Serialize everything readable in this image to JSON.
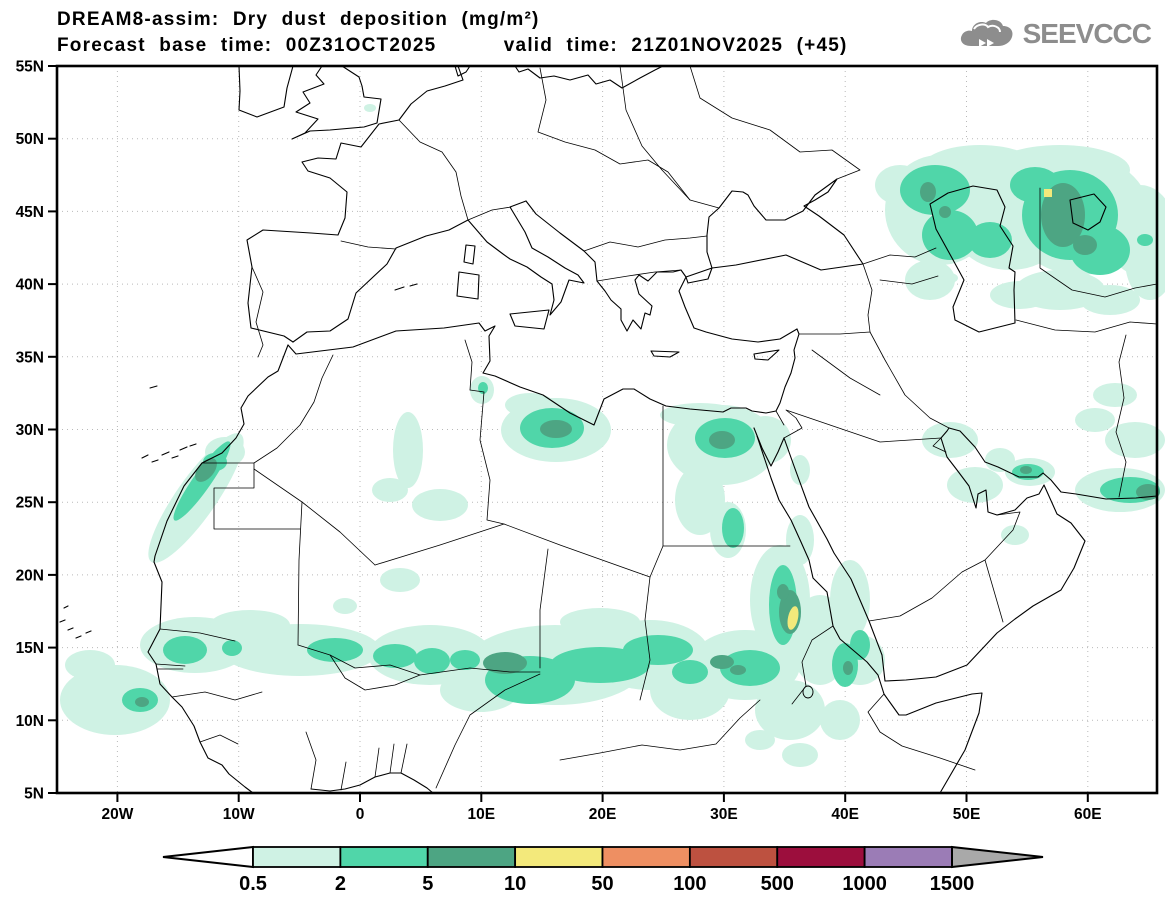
{
  "header": {
    "title_line1": "DREAM8-assim: Dry dust deposition (mg/m²)",
    "title_line2": "Forecast base time: 00Z31OCT2025     valid time: 21Z01NOV2025 (+45)"
  },
  "logo": {
    "text": "SEEVCCC",
    "color": "#8d8d8d"
  },
  "map": {
    "lat_ticks": [
      {
        "label": "55N",
        "value": 55
      },
      {
        "label": "50N",
        "value": 50
      },
      {
        "label": "45N",
        "value": 45
      },
      {
        "label": "40N",
        "value": 40
      },
      {
        "label": "35N",
        "value": 35
      },
      {
        "label": "30N",
        "value": 30
      },
      {
        "label": "25N",
        "value": 25
      },
      {
        "label": "20N",
        "value": 20
      },
      {
        "label": "15N",
        "value": 15
      },
      {
        "label": "10N",
        "value": 10
      },
      {
        "label": "5N",
        "value": 5
      }
    ],
    "lon_ticks": [
      {
        "label": "20W",
        "value": -20
      },
      {
        "label": "10W",
        "value": -10
      },
      {
        "label": "0",
        "value": 0
      },
      {
        "label": "10E",
        "value": 10
      },
      {
        "label": "20E",
        "value": 20
      },
      {
        "label": "30E",
        "value": 30
      },
      {
        "label": "40E",
        "value": 40
      },
      {
        "label": "50E",
        "value": 50
      },
      {
        "label": "60E",
        "value": 60
      }
    ],
    "grid_lats": [
      10,
      15,
      20,
      25,
      30,
      35,
      40,
      45,
      50
    ]
  },
  "colorbar": {
    "labels": [
      "0.5",
      "2",
      "5",
      "10",
      "50",
      "100",
      "500",
      "1000",
      "1500"
    ],
    "colors": [
      "#cff2e4",
      "#50d6a9",
      "#4da583",
      "#f3e97b",
      "#ee8f62",
      "#bd5140",
      "#9c0e3d",
      "#9b7cb6"
    ],
    "under_color": "#ffffff",
    "over_color": "#a9a9a9"
  },
  "chart_data": {
    "type": "heatmap",
    "title": "DREAM8-assim: Dry dust deposition (mg/m²)",
    "units": "mg/m²",
    "forecast_base_time": "00Z31OCT2025",
    "valid_time": "21Z01NOV2025 (+45)",
    "forecast_hour": 45,
    "lon_range": [
      -25,
      66
    ],
    "lat_range": [
      5,
      55
    ],
    "contour_levels": [
      0.5,
      2,
      5,
      10,
      50,
      100,
      500,
      1000,
      1500
    ],
    "legend_position": "bottom",
    "grid": "dotted, 5° latitude / 10° longitude",
    "regions": [
      {
        "area": "Sahel band (Senegal–Mali–Niger–Chad, 10–17N)",
        "peak_band_mg_m2": "5–10"
      },
      {
        "area": "Western Sahara / Morocco Atlantic coast",
        "peak_band_mg_m2": "5–10"
      },
      {
        "area": "Gulf of Sirte, Libya",
        "peak_band_mg_m2": "5–10"
      },
      {
        "area": "Nile Delta / northern Egypt",
        "peak_band_mg_m2": "5–10"
      },
      {
        "area": "Sudan Red Sea coast (~35E 17N)",
        "peak_band_mg_m2": "10–50"
      },
      {
        "area": "Caspian lowland / western Kazakhstan (~57E 47N)",
        "peak_band_mg_m2": "10–50"
      },
      {
        "area": "Strait of Hormuz",
        "peak_band_mg_m2": "5–10"
      },
      {
        "area": "Makran coast (SE Iran / Pakistan)",
        "peak_band_mg_m2": "5–10"
      },
      {
        "area": "Guinea coast (~12W 11N)",
        "peak_band_mg_m2": "5–10"
      }
    ]
  }
}
